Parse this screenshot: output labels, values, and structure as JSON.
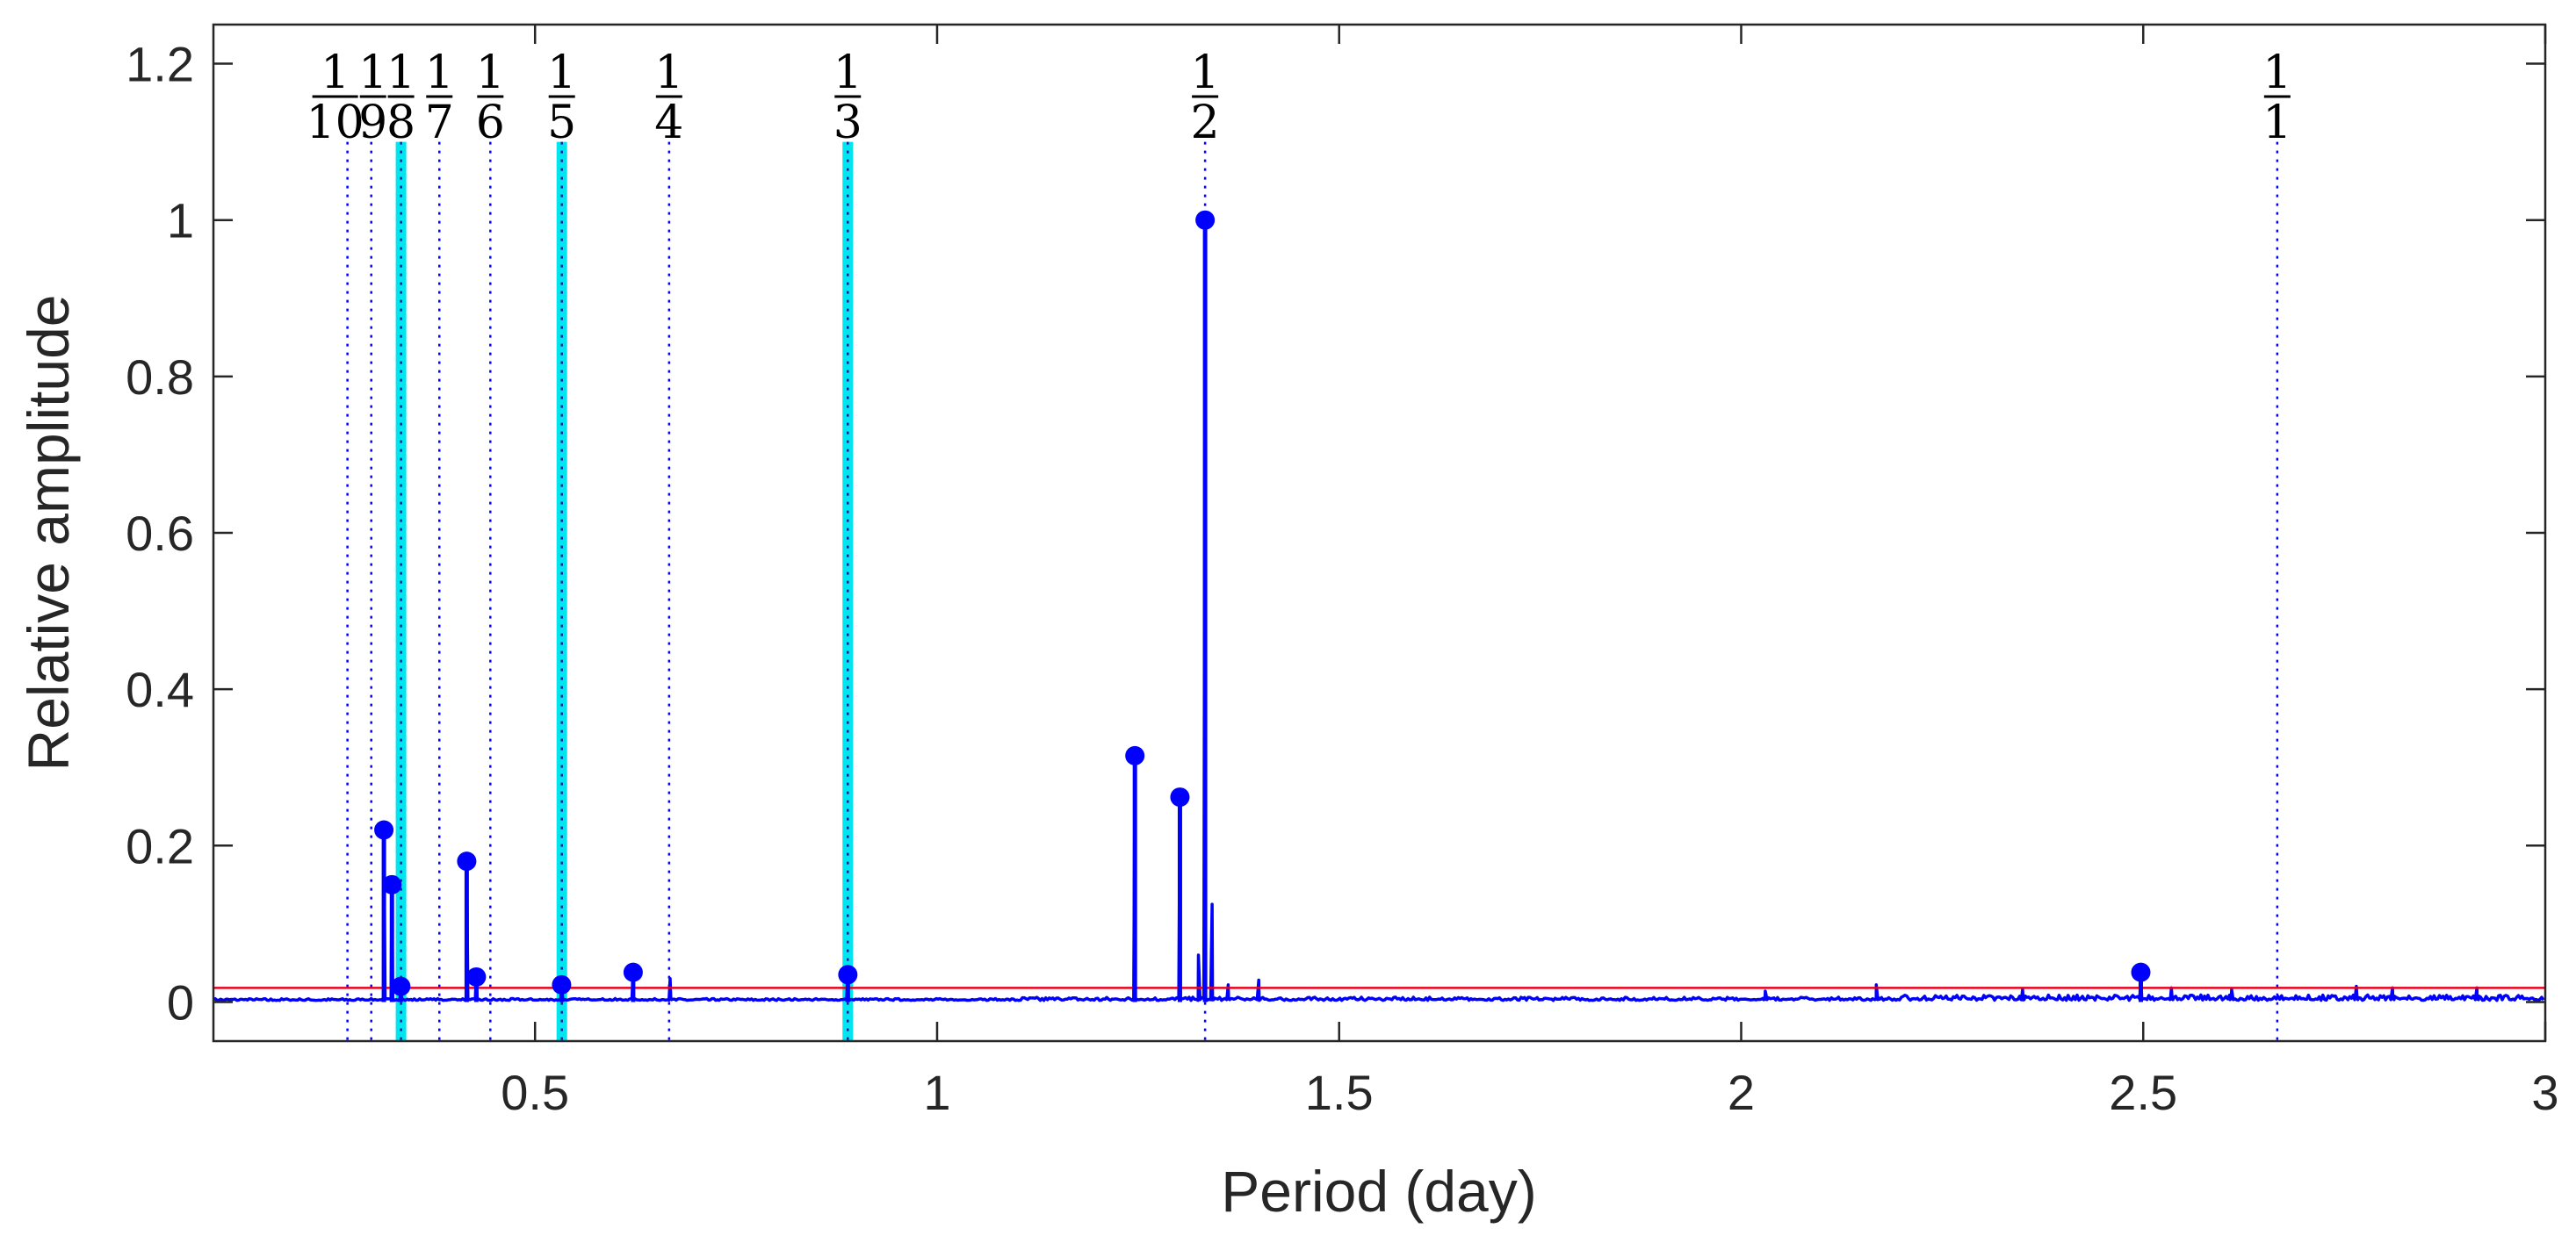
{
  "chart_data": {
    "type": "line",
    "title": "",
    "xlabel": "Period (day)",
    "ylabel": "Relative  amplitude",
    "xlim": [
      0.1,
      3.0
    ],
    "ylim": [
      -0.05,
      1.25
    ],
    "xticks": [
      0.5,
      1,
      1.5,
      2,
      2.5,
      3
    ],
    "xtick_labels": [
      "0.5",
      "1",
      "1.5",
      "2",
      "2.5",
      "3"
    ],
    "yticks": [
      0,
      0.2,
      0.4,
      0.6,
      0.8,
      1,
      1.2
    ],
    "ytick_labels": [
      "0",
      "0.2",
      "0.4",
      "0.6",
      "0.8",
      "1",
      "1.2"
    ],
    "grid": false,
    "colors": {
      "spectrum": "#0000ff",
      "threshold": "#e8001c",
      "highlight": "#00e5ee",
      "axes": "#262626"
    },
    "threshold": 0.018,
    "harmonic_lines": [
      {
        "x": 0.2667,
        "num": "1",
        "den": "10",
        "highlight": false
      },
      {
        "x": 0.2963,
        "num": "1",
        "den": "9",
        "highlight": false
      },
      {
        "x": 0.3333,
        "num": "1",
        "den": "8",
        "highlight": true
      },
      {
        "x": 0.381,
        "num": "1",
        "den": "7",
        "highlight": false
      },
      {
        "x": 0.4444,
        "num": "1",
        "den": "6",
        "highlight": false
      },
      {
        "x": 0.5333,
        "num": "1",
        "den": "5",
        "highlight": true
      },
      {
        "x": 0.6667,
        "num": "1",
        "den": "4",
        "highlight": false
      },
      {
        "x": 0.8889,
        "num": "1",
        "den": "3",
        "highlight": true
      },
      {
        "x": 1.3333,
        "num": "1",
        "den": "2",
        "highlight": false
      },
      {
        "x": 2.6667,
        "num": "1",
        "den": "1",
        "highlight": false
      }
    ],
    "harmonic_line_top": 1.1,
    "peaks": [
      {
        "x": 0.312,
        "y": 0.22
      },
      {
        "x": 0.322,
        "y": 0.15
      },
      {
        "x": 0.333,
        "y": 0.02
      },
      {
        "x": 0.415,
        "y": 0.18
      },
      {
        "x": 0.427,
        "y": 0.032
      },
      {
        "x": 0.533,
        "y": 0.022
      },
      {
        "x": 0.622,
        "y": 0.038
      },
      {
        "x": 0.889,
        "y": 0.035
      },
      {
        "x": 1.246,
        "y": 0.315
      },
      {
        "x": 1.302,
        "y": 0.262
      },
      {
        "x": 1.3333,
        "y": 1.0
      },
      {
        "x": 2.497,
        "y": 0.038
      }
    ],
    "minor_spikes": [
      {
        "x": 0.668,
        "y": 0.03
      },
      {
        "x": 1.325,
        "y": 0.06
      },
      {
        "x": 1.342,
        "y": 0.125
      },
      {
        "x": 1.362,
        "y": 0.022
      },
      {
        "x": 1.4,
        "y": 0.028
      },
      {
        "x": 2.03,
        "y": 0.014
      },
      {
        "x": 2.168,
        "y": 0.022
      },
      {
        "x": 2.35,
        "y": 0.016
      },
      {
        "x": 2.535,
        "y": 0.018
      },
      {
        "x": 2.61,
        "y": 0.016
      },
      {
        "x": 2.765,
        "y": 0.02
      },
      {
        "x": 2.81,
        "y": 0.018
      },
      {
        "x": 2.915,
        "y": 0.018
      }
    ]
  }
}
